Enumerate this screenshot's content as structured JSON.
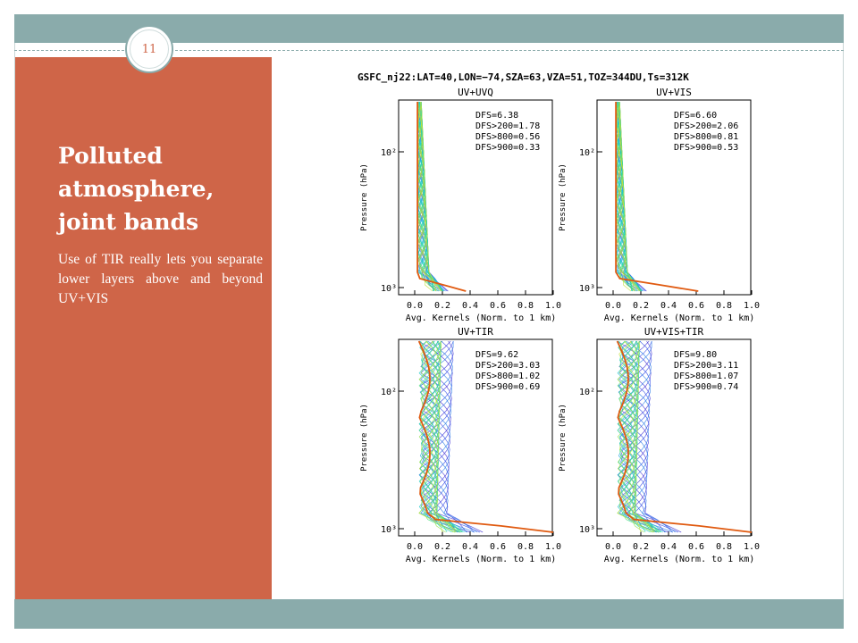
{
  "slide": {
    "number": "11",
    "title": "Polluted\natmosphere,\njoint bands",
    "body": "Use of TIR really lets you separate lower layers above and beyond UV+VIS"
  },
  "colors": {
    "accent_bar": "#8aabab",
    "left_panel": "#cf6548",
    "text_on_panel": "#ffffff"
  },
  "figure": {
    "header": "GSFC_nj22:LAT=40,LON=−74,SZA=63,VZA=51,TOZ=344DU,Ts=312K",
    "ylabel": "Pressure (hPa)",
    "xlabel": "Avg. Kernels (Norm. to 1 km)",
    "xticks": [
      "0.0",
      "0.2",
      "0.4",
      "0.6",
      "0.8",
      "1.0"
    ],
    "yticks": [
      "10²",
      "10³"
    ],
    "panels": [
      {
        "title": "UV+UVQ",
        "dfs": [
          "DFS=6.38",
          "DFS>200=1.78",
          "DFS>800=0.56",
          "DFS>900=0.33"
        ]
      },
      {
        "title": "UV+VIS",
        "dfs": [
          "DFS=6.60",
          "DFS>200=2.06",
          "DFS>800=0.81",
          "DFS>900=0.53"
        ]
      },
      {
        "title": "UV+TIR",
        "dfs": [
          "DFS=9.62",
          "DFS>200=3.03",
          "DFS>800=1.02",
          "DFS>900=0.69"
        ]
      },
      {
        "title": "UV+VIS+TIR",
        "dfs": [
          "DFS=9.80",
          "DFS>200=3.11",
          "DFS>800=1.07",
          "DFS>900=0.74"
        ]
      }
    ]
  }
}
